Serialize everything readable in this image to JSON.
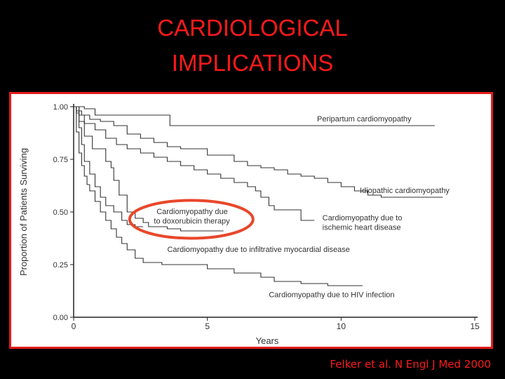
{
  "slide": {
    "title_line1": "CARDIOLOGICAL",
    "title_line2": "IMPLICATIONS",
    "citation": "Felker et al. N Engl J Med 2000",
    "colors": {
      "title": "#ff1a1a",
      "frame": "#e31b1b",
      "highlight": "#e8472a",
      "background": "#000000"
    }
  },
  "chart_data": {
    "type": "line",
    "xlabel": "Years",
    "ylabel": "Proportion of Patients Surviving",
    "xlim": [
      0,
      15
    ],
    "ylim": [
      0,
      1
    ],
    "xticks": [
      "0",
      "5",
      "10",
      "15"
    ],
    "yticks": [
      "0.00",
      "0.25",
      "0.50",
      "0.75",
      "1.00"
    ],
    "grid": false,
    "series": [
      {
        "name": "Peripartum cardiomyopathy",
        "step": true,
        "points": [
          [
            0,
            1.0
          ],
          [
            0.4,
            0.99
          ],
          [
            0.8,
            0.96
          ],
          [
            3.6,
            0.96
          ],
          [
            3.6,
            0.91
          ],
          [
            13.5,
            0.91
          ]
        ]
      },
      {
        "name": "Idiopathic cardiomyopathy",
        "step": true,
        "points": [
          [
            0,
            1.0
          ],
          [
            0.1,
            0.98
          ],
          [
            0.3,
            0.96
          ],
          [
            0.6,
            0.94
          ],
          [
            1.0,
            0.93
          ],
          [
            1.5,
            0.91
          ],
          [
            2.0,
            0.87
          ],
          [
            2.5,
            0.85
          ],
          [
            3.0,
            0.83
          ],
          [
            3.5,
            0.81
          ],
          [
            4.0,
            0.8
          ],
          [
            5.0,
            0.77
          ],
          [
            6.0,
            0.74
          ],
          [
            6.5,
            0.72
          ],
          [
            7.0,
            0.71
          ],
          [
            7.5,
            0.7
          ],
          [
            8.0,
            0.68
          ],
          [
            8.5,
            0.67
          ],
          [
            9.0,
            0.66
          ],
          [
            9.5,
            0.64
          ],
          [
            10.0,
            0.62
          ],
          [
            10.5,
            0.6
          ],
          [
            11.0,
            0.58
          ],
          [
            11.5,
            0.57
          ],
          [
            13.8,
            0.57
          ]
        ]
      },
      {
        "name": "Cardiomyopathy due to ischemic heart disease",
        "step": true,
        "points": [
          [
            0,
            1.0
          ],
          [
            0.2,
            0.96
          ],
          [
            0.4,
            0.92
          ],
          [
            0.8,
            0.89
          ],
          [
            1.2,
            0.85
          ],
          [
            1.6,
            0.82
          ],
          [
            2.0,
            0.8
          ],
          [
            2.5,
            0.78
          ],
          [
            3.0,
            0.76
          ],
          [
            3.5,
            0.74
          ],
          [
            4.0,
            0.72
          ],
          [
            4.5,
            0.7
          ],
          [
            5.0,
            0.68
          ],
          [
            5.5,
            0.66
          ],
          [
            6.0,
            0.64
          ],
          [
            6.5,
            0.62
          ],
          [
            6.8,
            0.6
          ],
          [
            7.0,
            0.57
          ],
          [
            7.3,
            0.53
          ],
          [
            7.5,
            0.51
          ],
          [
            8.5,
            0.51
          ],
          [
            8.5,
            0.46
          ],
          [
            9.0,
            0.46
          ]
        ]
      },
      {
        "name": "Cardiomyopathy due to infiltrative myocardial disease",
        "step": true,
        "points": [
          [
            0,
            1.0
          ],
          [
            0.2,
            0.93
          ],
          [
            0.4,
            0.86
          ],
          [
            0.7,
            0.8
          ],
          [
            1.2,
            0.74
          ],
          [
            1.4,
            0.71
          ],
          [
            1.5,
            0.65
          ],
          [
            1.7,
            0.58
          ],
          [
            2.0,
            0.5
          ],
          [
            2.3,
            0.47
          ],
          [
            2.6,
            0.45
          ],
          [
            2.8,
            0.43
          ],
          [
            3.5,
            0.42
          ],
          [
            4.0,
            0.41
          ],
          [
            5.6,
            0.41
          ]
        ]
      },
      {
        "name": "Cardiomyopathy due to HIV infection",
        "step": true,
        "points": [
          [
            0,
            1.0
          ],
          [
            0.1,
            0.88
          ],
          [
            0.2,
            0.78
          ],
          [
            0.3,
            0.72
          ],
          [
            0.4,
            0.67
          ],
          [
            0.5,
            0.63
          ],
          [
            0.6,
            0.6
          ],
          [
            0.8,
            0.55
          ],
          [
            1.0,
            0.5
          ],
          [
            1.2,
            0.46
          ],
          [
            1.4,
            0.42
          ],
          [
            1.6,
            0.38
          ],
          [
            1.8,
            0.35
          ],
          [
            2.0,
            0.32
          ],
          [
            2.3,
            0.28
          ],
          [
            2.6,
            0.26
          ],
          [
            3.3,
            0.25
          ],
          [
            5.0,
            0.23
          ],
          [
            6.0,
            0.21
          ],
          [
            7.0,
            0.19
          ],
          [
            7.5,
            0.17
          ],
          [
            8.5,
            0.16
          ],
          [
            9.5,
            0.15
          ],
          [
            10.8,
            0.15
          ]
        ]
      },
      {
        "name": "Cardiomyopathy due to doxorubicin therapy",
        "step": true,
        "points": [
          [
            0,
            1.0
          ],
          [
            0.1,
            0.97
          ],
          [
            0.2,
            0.9
          ],
          [
            0.3,
            0.82
          ],
          [
            0.4,
            0.74
          ],
          [
            0.6,
            0.68
          ],
          [
            0.8,
            0.62
          ],
          [
            1.0,
            0.57
          ],
          [
            1.2,
            0.53
          ],
          [
            1.5,
            0.5
          ],
          [
            1.8,
            0.46
          ],
          [
            2.0,
            0.44
          ],
          [
            2.3,
            0.43
          ],
          [
            2.6,
            0.43
          ]
        ]
      }
    ],
    "annotations": [
      {
        "text": "Peripartum cardiomyopathy",
        "x": 9.1,
        "y": 0.93
      },
      {
        "text": "Idiopathic cardiomyopathy",
        "x": 10.7,
        "y": 0.59
      },
      {
        "text": "Cardiomyopathy due to",
        "x": 9.3,
        "y": 0.46
      },
      {
        "text": "ischemic heart disease",
        "x": 9.3,
        "y": 0.415
      },
      {
        "text": "Cardiomyopathy due",
        "x": 3.1,
        "y": 0.49
      },
      {
        "text": "to doxorubicin therapy",
        "x": 3.0,
        "y": 0.445
      },
      {
        "text": "Cardiomyopathy due to infiltrative myocardial disease",
        "x": 3.5,
        "y": 0.31
      },
      {
        "text": "Cardiomyopathy due to HIV infection",
        "x": 7.3,
        "y": 0.095
      }
    ],
    "highlight": {
      "label_ref": "Cardiomyopathy due to doxorubicin therapy",
      "shape": "ellipse",
      "color": "#e8472a"
    }
  }
}
